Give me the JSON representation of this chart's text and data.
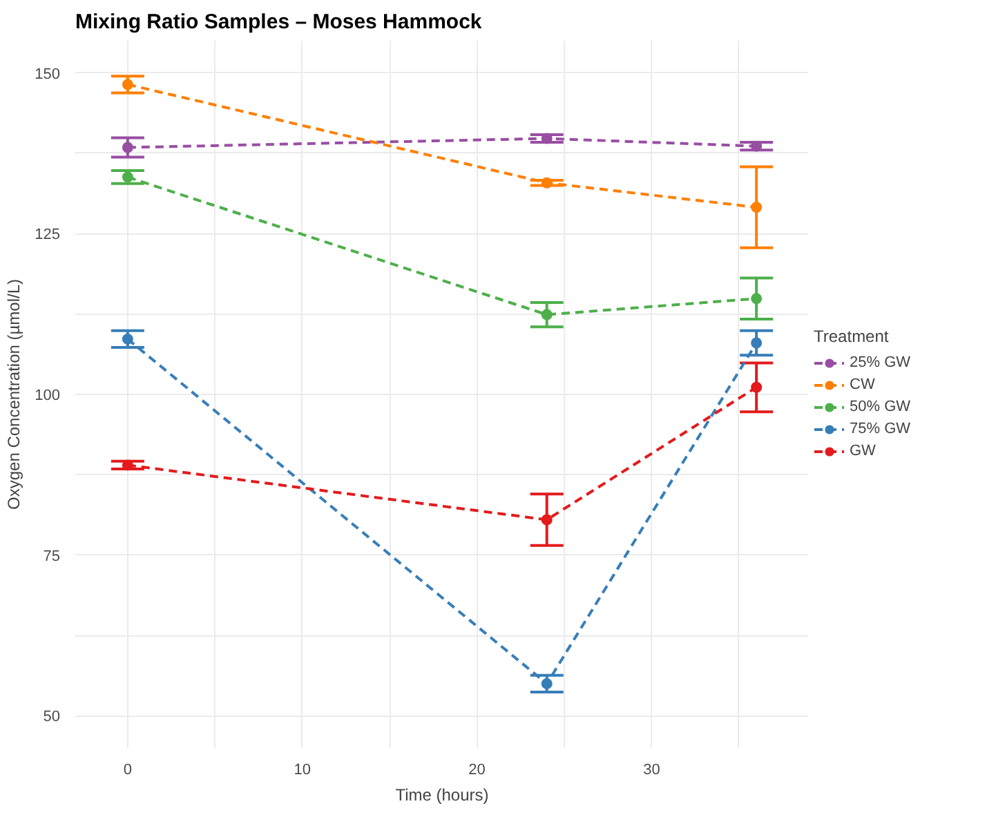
{
  "chart_data": {
    "type": "line",
    "title": "Mixing Ratio Samples – Moses Hammock",
    "xlabel": "Time (hours)",
    "ylabel": "Oxygen Concentration (µmol/L)",
    "legend_title": "Treatment",
    "x": [
      0,
      24,
      36
    ],
    "series": [
      {
        "name": "25% GW",
        "color": "#984ea3",
        "values": [
          138.4,
          139.8,
          138.6
        ],
        "errors": [
          1.5,
          0.6,
          0.6
        ]
      },
      {
        "name": "CW",
        "color": "#ff7f00",
        "values": [
          148.2,
          132.9,
          129.1
        ],
        "errors": [
          1.3,
          0.4,
          6.3
        ]
      },
      {
        "name": "50% GW",
        "color": "#4daf4a",
        "values": [
          133.8,
          112.4,
          114.9
        ],
        "errors": [
          1.0,
          1.9,
          3.2
        ]
      },
      {
        "name": "75% GW",
        "color": "#377eb8",
        "values": [
          108.6,
          55.0,
          108.0
        ],
        "errors": [
          1.3,
          1.3,
          1.9
        ]
      },
      {
        "name": "GW",
        "color": "#e41a1c",
        "values": [
          89.0,
          80.5,
          101.1
        ],
        "errors": [
          0.6,
          4.0,
          3.8
        ]
      }
    ],
    "xlim": [
      -3,
      39
    ],
    "ylim": [
      45,
      155
    ],
    "xticks": [
      0,
      {
        "value": 5,
        "label": null
      },
      10,
      {
        "value": 15,
        "label": null
      },
      20,
      {
        "value": 25,
        "label": null
      },
      30,
      {
        "value": 35,
        "label": null
      }
    ],
    "yticks": [
      50,
      {
        "value": 62.5,
        "label": null
      },
      75,
      {
        "value": 87.5,
        "label": null
      },
      100,
      {
        "value": 112.5,
        "label": null
      },
      125,
      {
        "value": 137.5,
        "label": null
      },
      150
    ],
    "grid": true,
    "legend": "right",
    "marker": "circle",
    "line_style": "dashed"
  }
}
